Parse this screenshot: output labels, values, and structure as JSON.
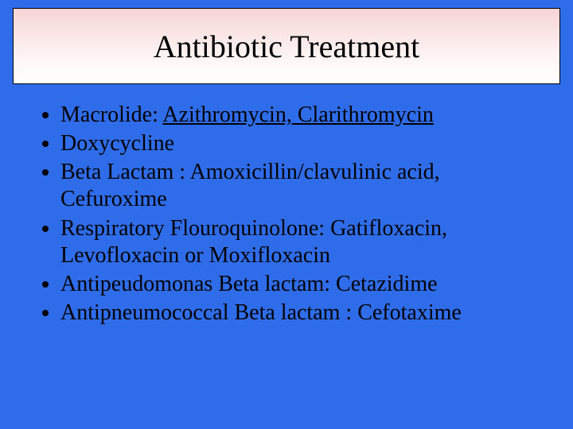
{
  "slide": {
    "background_color": "#2e6cea",
    "title": {
      "text": "Antibiotic Treatment",
      "fontsize": 40,
      "font_family": "Times New Roman",
      "box_background_gradient": [
        "#f6d4d4",
        "#fef7f7",
        "#ffffff"
      ],
      "box_border_color": "#000000",
      "text_color": "#000000"
    },
    "bullets": {
      "fontsize": 28,
      "text_color": "#000000",
      "marker": "disc",
      "items": [
        {
          "prefix": "Macrolide: ",
          "underlined": "Azithromycin, Clarithromycin",
          "suffix": ""
        },
        {
          "prefix": "Doxycycline",
          "underlined": "",
          "suffix": ""
        },
        {
          "prefix": "Beta Lactam : Amoxicillin/clavulinic acid, Cefuroxime",
          "underlined": "",
          "suffix": ""
        },
        {
          "prefix": "Respiratory Flouroquinolone: Gatifloxacin, Levofloxacin or Moxifloxacin",
          "underlined": "",
          "suffix": ""
        },
        {
          "prefix": "Antipeudomonas Beta lactam: Cetazidime",
          "underlined": "",
          "suffix": ""
        },
        {
          "prefix": "Antipneumococcal Beta lactam : Cefotaxime",
          "underlined": "",
          "suffix": ""
        }
      ]
    }
  }
}
